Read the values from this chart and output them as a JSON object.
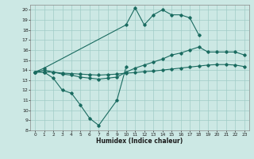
{
  "xlabel": "Humidex (Indice chaleur)",
  "background_color": "#cce8e4",
  "grid_color": "#a0ccc6",
  "line_color": "#1a6b60",
  "xlim": [
    -0.5,
    23.5
  ],
  "ylim": [
    8,
    20.5
  ],
  "xticks": [
    0,
    1,
    2,
    3,
    4,
    5,
    6,
    7,
    8,
    9,
    10,
    11,
    12,
    13,
    14,
    15,
    16,
    17,
    18,
    19,
    20,
    21,
    22,
    23
  ],
  "yticks": [
    8,
    9,
    10,
    11,
    12,
    13,
    14,
    15,
    16,
    17,
    18,
    19,
    20
  ],
  "line1_x": [
    0,
    1,
    2,
    3,
    4,
    5,
    6,
    7,
    9,
    10
  ],
  "line1_y": [
    13.8,
    13.8,
    13.2,
    12.0,
    11.7,
    10.5,
    9.2,
    8.5,
    11.0,
    14.3
  ],
  "line2_x": [
    0,
    1,
    10,
    11,
    12,
    13,
    14,
    15,
    16,
    17,
    18
  ],
  "line2_y": [
    13.8,
    14.2,
    18.5,
    20.2,
    18.5,
    19.5,
    20.0,
    19.5,
    19.5,
    19.2,
    17.5
  ],
  "line3_x": [
    0,
    1,
    2,
    3,
    4,
    5,
    6,
    7,
    8,
    9,
    10,
    11,
    12,
    13,
    14,
    15,
    16,
    17,
    18,
    19,
    20,
    21,
    22,
    23
  ],
  "line3_y": [
    13.8,
    14.0,
    13.8,
    13.6,
    13.5,
    13.3,
    13.2,
    13.1,
    13.2,
    13.3,
    13.8,
    14.2,
    14.5,
    14.8,
    15.1,
    15.5,
    15.7,
    16.0,
    16.3,
    15.8,
    15.8,
    15.8,
    15.8,
    15.5
  ],
  "line4_x": [
    0,
    1,
    2,
    3,
    4,
    5,
    6,
    7,
    8,
    9,
    10,
    11,
    12,
    13,
    14,
    15,
    16,
    17,
    18,
    19,
    20,
    21,
    22,
    23
  ],
  "line4_y": [
    13.8,
    13.8,
    13.8,
    13.7,
    13.65,
    13.6,
    13.55,
    13.5,
    13.55,
    13.6,
    13.7,
    13.75,
    13.85,
    13.9,
    14.0,
    14.1,
    14.2,
    14.3,
    14.4,
    14.5,
    14.55,
    14.55,
    14.5,
    14.35
  ]
}
